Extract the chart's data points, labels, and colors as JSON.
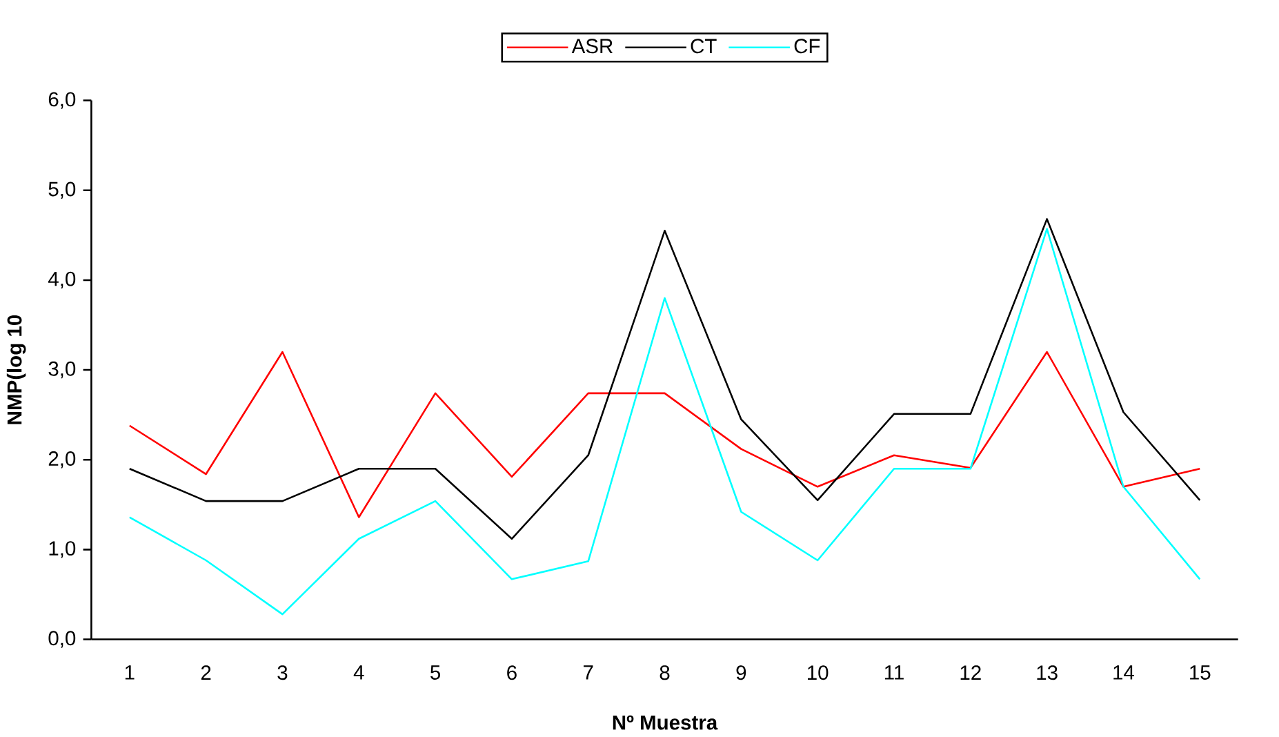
{
  "chart_data": {
    "type": "line",
    "xlabel": "Nº Muestra",
    "ylabel": "NMP(log 10",
    "categories": [
      "1",
      "2",
      "3",
      "4",
      "5",
      "6",
      "7",
      "8",
      "9",
      "10",
      "11",
      "12",
      "13",
      "14",
      "15"
    ],
    "series": [
      {
        "name": "ASR",
        "color": "#ff0000",
        "values": [
          2.38,
          1.84,
          3.2,
          1.36,
          2.74,
          1.81,
          2.74,
          2.74,
          2.12,
          1.7,
          2.05,
          1.91,
          3.2,
          1.7,
          1.9
        ]
      },
      {
        "name": "CT",
        "color": "#000000",
        "values": [
          1.9,
          1.54,
          1.54,
          1.9,
          1.9,
          1.12,
          2.05,
          4.55,
          2.45,
          1.55,
          2.51,
          2.51,
          4.68,
          2.53,
          1.55
        ]
      },
      {
        "name": "CF",
        "color": "#00ffff",
        "values": [
          1.36,
          0.88,
          0.28,
          1.12,
          1.54,
          0.67,
          0.87,
          3.8,
          1.42,
          0.88,
          1.9,
          1.9,
          4.57,
          1.7,
          0.67
        ]
      }
    ],
    "ylim": [
      0,
      6
    ],
    "yticks": [
      {
        "value": 0,
        "label": "0,0"
      },
      {
        "value": 1,
        "label": "1,0"
      },
      {
        "value": 2,
        "label": "2,0"
      },
      {
        "value": 3,
        "label": "3,0"
      },
      {
        "value": 4,
        "label": "4,0"
      },
      {
        "value": 5,
        "label": "5,0"
      },
      {
        "value": 6,
        "label": "6,0"
      }
    ],
    "legend": "top",
    "marker": "none",
    "line_style": "solid"
  }
}
